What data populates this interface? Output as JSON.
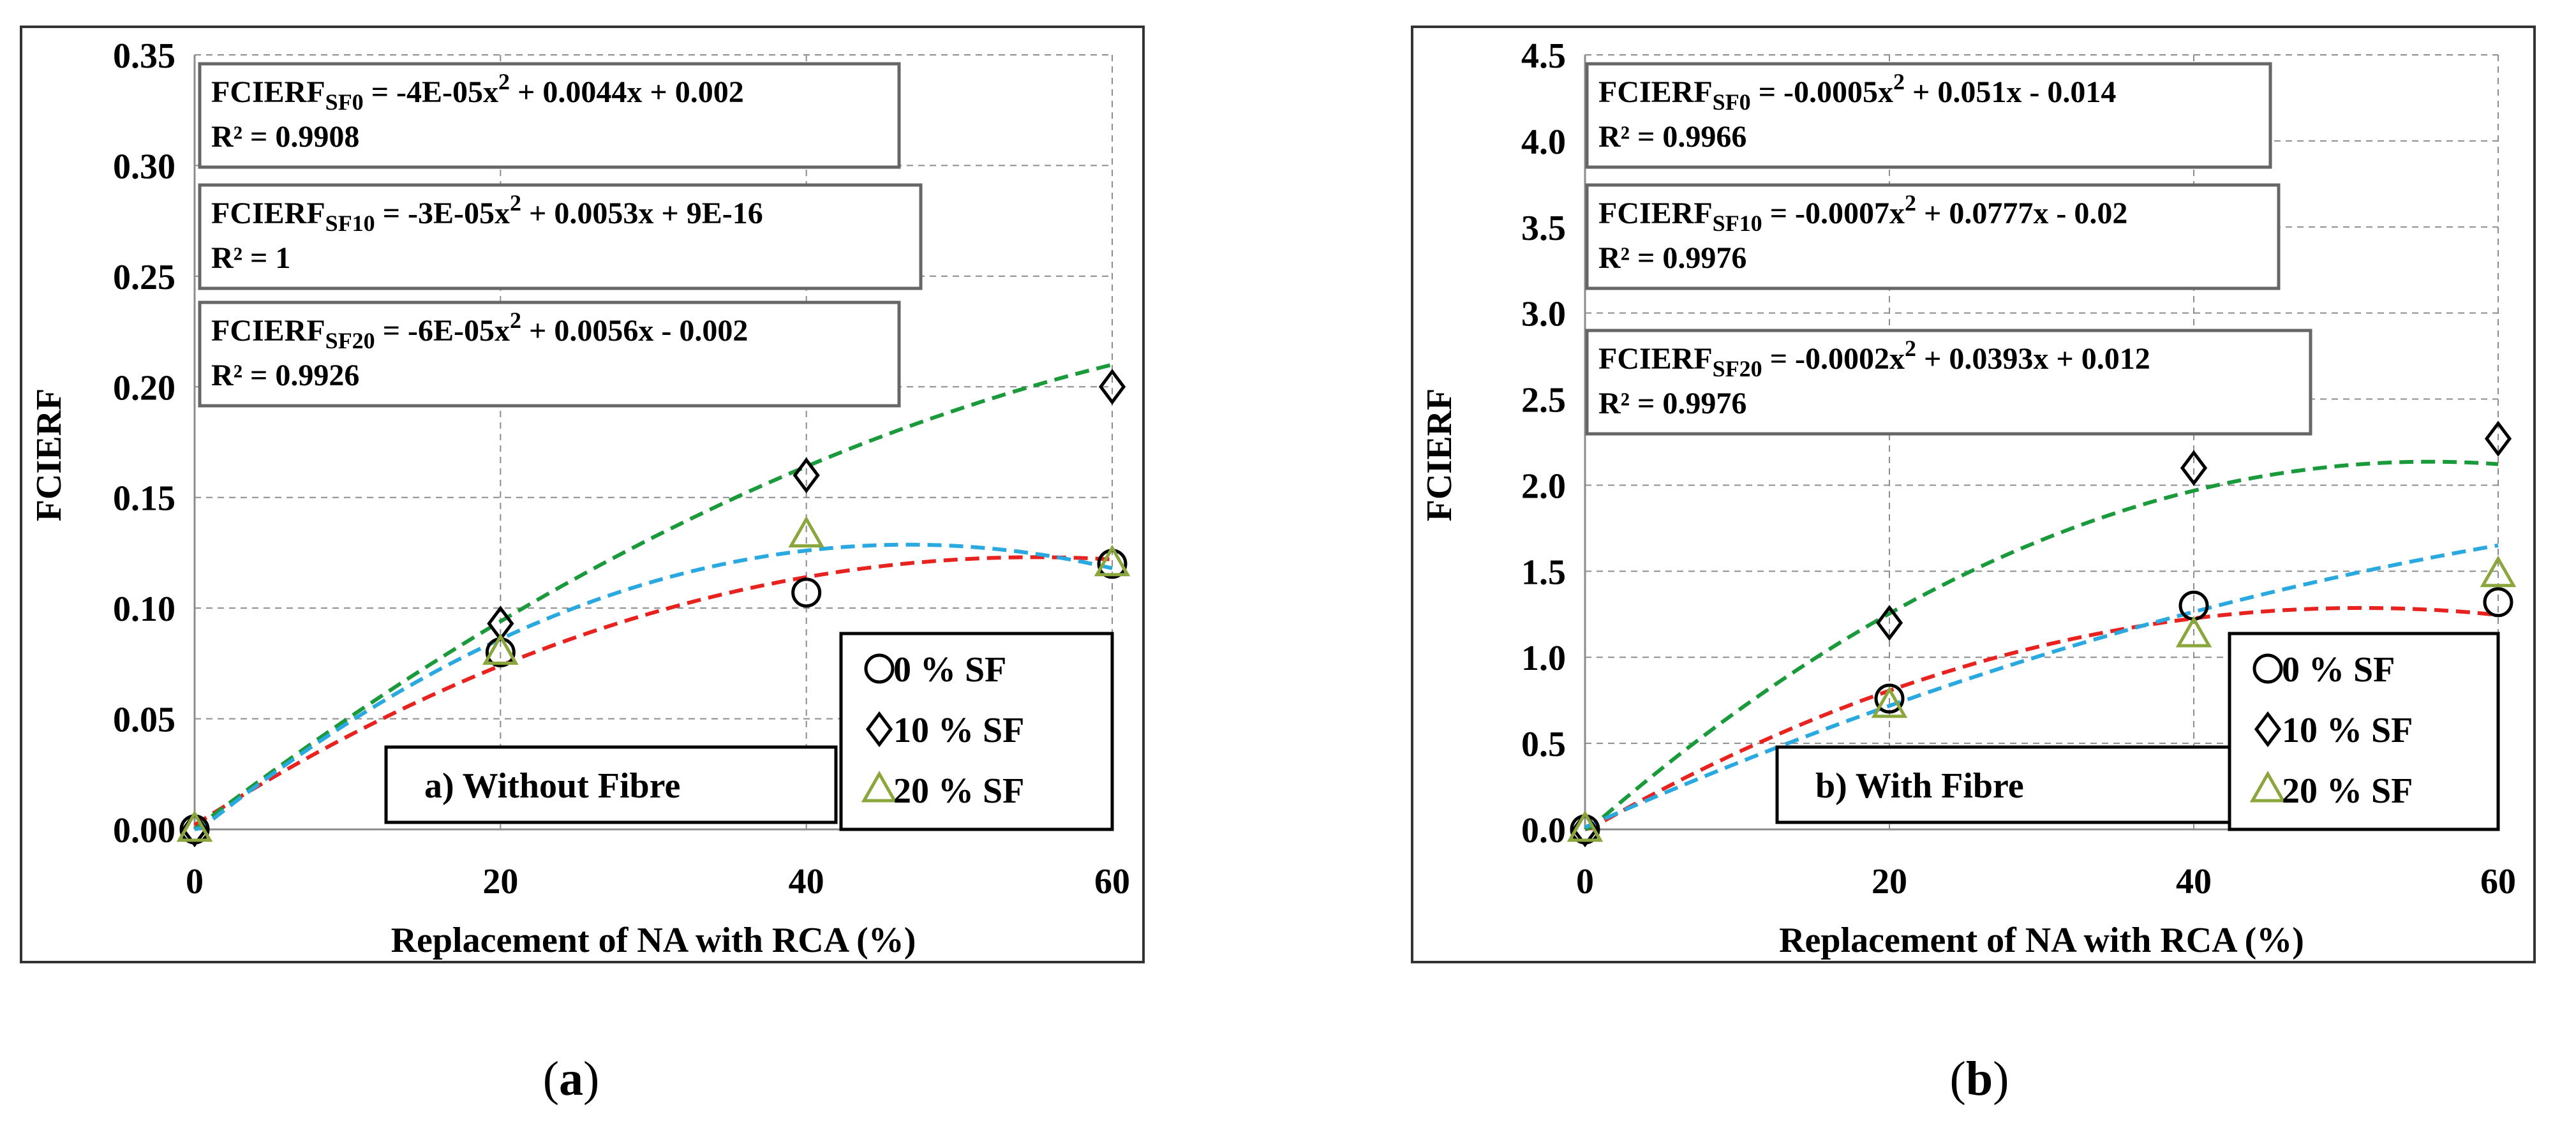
{
  "chart_data": [
    {
      "type": "scatter",
      "panel_label": "a) Without Fibre",
      "subfigure_caption": "(a)",
      "caption_letter": "a",
      "xlabel": "Replacement of NA with RCA (%)",
      "ylabel": "FCIERF",
      "xlim": [
        0,
        60
      ],
      "ylim": [
        0,
        0.35
      ],
      "x_ticks": [
        0,
        20,
        40,
        60
      ],
      "x_tick_labels": [
        "0",
        "20",
        "40",
        "60"
      ],
      "y_ticks": [
        0,
        0.05,
        0.1,
        0.15,
        0.2,
        0.25,
        0.3,
        0.35
      ],
      "y_tick_labels": [
        "0.00",
        "0.05",
        "0.10",
        "0.15",
        "0.20",
        "0.25",
        "0.30",
        "0.35"
      ],
      "grid": true,
      "legend_position": "bottom-right",
      "series": [
        {
          "name": "0 % SF",
          "marker": "circle",
          "marker_color": "#000000",
          "trend_color": "#e8231f",
          "x": [
            0,
            20,
            40,
            60
          ],
          "y": [
            0,
            0.08,
            0.107,
            0.12
          ],
          "fit": [
            -4e-05,
            0.0044,
            0.002
          ]
        },
        {
          "name": "10 % SF",
          "marker": "diamond",
          "marker_color": "#000000",
          "trend_color": "#1a9a3a",
          "x": [
            0,
            20,
            40,
            60
          ],
          "y": [
            0,
            0.093,
            0.16,
            0.2
          ],
          "fit": [
            -3e-05,
            0.0053,
            0.0
          ]
        },
        {
          "name": "20 % SF",
          "marker": "triangle",
          "marker_color": "#8aa63c",
          "trend_color": "#2aa8e0",
          "x": [
            0,
            20,
            40,
            60
          ],
          "y": [
            0,
            0.08,
            0.133,
            0.12
          ],
          "fit": [
            -6e-05,
            0.0056,
            -0.002
          ]
        }
      ],
      "equations": [
        {
          "prefix": "FCIERF",
          "sub": "SF0",
          "lhs": " = -4E-05x",
          "sup": "2",
          "rhs": " + 0.0044x + 0.002",
          "r2": "R² = 0.9908"
        },
        {
          "prefix": "FCIERF",
          "sub": "SF10",
          "lhs": " = -3E-05x",
          "sup": "2",
          "rhs": " + 0.0053x + 9E-16",
          "r2": "R² = 1"
        },
        {
          "prefix": "FCIERF",
          "sub": "SF20",
          "lhs": " = -6E-05x",
          "sup": "2",
          "rhs": " + 0.0056x - 0.002",
          "r2": "R² = 0.9926"
        }
      ]
    },
    {
      "type": "scatter",
      "panel_label": "b) With Fibre",
      "subfigure_caption": "(b)",
      "caption_letter": "b",
      "xlabel": "Replacement of NA with RCA (%)",
      "ylabel": "FCIERF",
      "xlim": [
        0,
        60
      ],
      "ylim": [
        0,
        4.5
      ],
      "x_ticks": [
        0,
        20,
        40,
        60
      ],
      "x_tick_labels": [
        "0",
        "20",
        "40",
        "60"
      ],
      "y_ticks": [
        0,
        0.5,
        1,
        1.5,
        2,
        2.5,
        3,
        3.5,
        4,
        4.5
      ],
      "y_tick_labels": [
        "0.0",
        "0.5",
        "1.0",
        "1.5",
        "2.0",
        "2.5",
        "3.0",
        "3.5",
        "4.0",
        "4.5"
      ],
      "grid": true,
      "legend_position": "bottom-right",
      "series": [
        {
          "name": "0 % SF",
          "marker": "circle",
          "marker_color": "#000000",
          "trend_color": "#e8231f",
          "x": [
            0,
            20,
            40,
            60
          ],
          "y": [
            0,
            0.76,
            1.3,
            1.32
          ],
          "fit": [
            -0.0005,
            0.051,
            -0.014
          ]
        },
        {
          "name": "10 % SF",
          "marker": "diamond",
          "marker_color": "#000000",
          "trend_color": "#1a9a3a",
          "x": [
            0,
            20,
            40,
            60
          ],
          "y": [
            0,
            1.2,
            2.1,
            2.27
          ],
          "fit": [
            -0.0007,
            0.0777,
            -0.02
          ]
        },
        {
          "name": "20 % SF",
          "marker": "triangle",
          "marker_color": "#8aa63c",
          "trend_color": "#2aa8e0",
          "x": [
            0,
            20,
            40,
            60
          ],
          "y": [
            0,
            0.72,
            1.13,
            1.48
          ],
          "fit": [
            -0.0002,
            0.0393,
            0.012
          ]
        }
      ],
      "equations": [
        {
          "prefix": "FCIERF",
          "sub": "SF0",
          "lhs": " = -0.0005x",
          "sup": "2",
          "rhs": " + 0.051x - 0.014",
          "r2": "R² = 0.9966"
        },
        {
          "prefix": "FCIERF",
          "sub": "SF10",
          "lhs": " = -0.0007x",
          "sup": "2",
          "rhs": " + 0.0777x - 0.02",
          "r2": "R² = 0.9976"
        },
        {
          "prefix": "FCIERF",
          "sub": "SF20",
          "lhs": " = -0.0002x",
          "sup": "2",
          "rhs": " + 0.0393x + 0.012",
          "r2": "R² = 0.9976"
        }
      ]
    }
  ]
}
